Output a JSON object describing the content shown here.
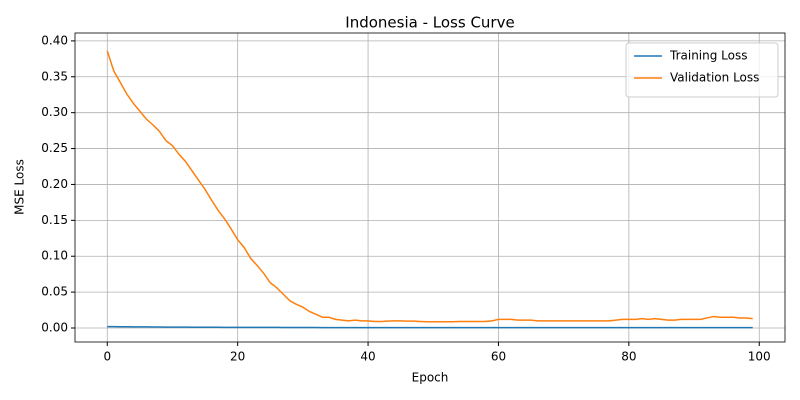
{
  "chart_data": {
    "type": "line",
    "title": "Indonesia - Loss Curve",
    "x_label": "Epoch",
    "y_label": "MSE Loss",
    "x": [
      0,
      1,
      2,
      3,
      4,
      5,
      6,
      7,
      8,
      9,
      10,
      11,
      12,
      13,
      14,
      15,
      16,
      17,
      18,
      19,
      20,
      21,
      22,
      23,
      24,
      25,
      26,
      27,
      28,
      29,
      30,
      31,
      32,
      33,
      34,
      35,
      36,
      37,
      38,
      39,
      40,
      41,
      42,
      43,
      44,
      45,
      46,
      47,
      48,
      49,
      50,
      51,
      52,
      53,
      54,
      55,
      56,
      57,
      58,
      59,
      60,
      61,
      62,
      63,
      64,
      65,
      66,
      67,
      68,
      69,
      70,
      71,
      72,
      73,
      74,
      75,
      76,
      77,
      78,
      79,
      80,
      81,
      82,
      83,
      84,
      85,
      86,
      87,
      88,
      89,
      90,
      91,
      92,
      93,
      94,
      95,
      96,
      97,
      98,
      99
    ],
    "series": [
      {
        "name": "Training Loss",
        "color": "#1f77b4",
        "values": [
          0.002,
          0.0019,
          0.0018,
          0.0017,
          0.0016,
          0.0015,
          0.0015,
          0.0014,
          0.0014,
          0.0013,
          0.0013,
          0.0012,
          0.0012,
          0.0011,
          0.0011,
          0.001,
          0.001,
          0.001,
          0.0009,
          0.0009,
          0.0009,
          0.0009,
          0.0008,
          0.0008,
          0.0008,
          0.0008,
          0.0008,
          0.0007,
          0.0007,
          0.0007,
          0.0007,
          0.0007,
          0.0007,
          0.0006,
          0.0006,
          0.0006,
          0.0006,
          0.0006,
          0.0006,
          0.0006,
          0.0006,
          0.0006,
          0.0006,
          0.0006,
          0.0005,
          0.0005,
          0.0005,
          0.0005,
          0.0005,
          0.0005,
          0.0005,
          0.0005,
          0.0005,
          0.0005,
          0.0005,
          0.0005,
          0.0005,
          0.0005,
          0.0005,
          0.0005,
          0.0005,
          0.0005,
          0.0005,
          0.0005,
          0.0005,
          0.0005,
          0.0005,
          0.0005,
          0.0005,
          0.0005,
          0.0005,
          0.0005,
          0.0005,
          0.0005,
          0.0005,
          0.0005,
          0.0005,
          0.0005,
          0.0005,
          0.0005,
          0.0005,
          0.0005,
          0.0005,
          0.0005,
          0.0005,
          0.0005,
          0.0005,
          0.0005,
          0.0005,
          0.0005,
          0.0005,
          0.0005,
          0.0005,
          0.0005,
          0.0005,
          0.0005,
          0.0005,
          0.0005,
          0.0005,
          0.0005
        ]
      },
      {
        "name": "Validation Loss",
        "color": "#ff7f0e",
        "values": [
          0.386,
          0.358,
          0.342,
          0.326,
          0.313,
          0.302,
          0.291,
          0.283,
          0.274,
          0.261,
          0.254,
          0.242,
          0.232,
          0.219,
          0.206,
          0.193,
          0.178,
          0.164,
          0.152,
          0.138,
          0.123,
          0.112,
          0.097,
          0.087,
          0.076,
          0.063,
          0.056,
          0.047,
          0.038,
          0.033,
          0.029,
          0.023,
          0.019,
          0.015,
          0.015,
          0.012,
          0.011,
          0.01,
          0.011,
          0.01,
          0.01,
          0.009,
          0.009,
          0.0095,
          0.01,
          0.01,
          0.0095,
          0.0095,
          0.009,
          0.0088,
          0.0088,
          0.0088,
          0.0088,
          0.0088,
          0.009,
          0.009,
          0.009,
          0.009,
          0.009,
          0.01,
          0.012,
          0.012,
          0.012,
          0.011,
          0.011,
          0.011,
          0.01,
          0.01,
          0.01,
          0.01,
          0.01,
          0.01,
          0.01,
          0.01,
          0.01,
          0.01,
          0.01,
          0.01,
          0.011,
          0.012,
          0.012,
          0.012,
          0.013,
          0.012,
          0.013,
          0.012,
          0.011,
          0.011,
          0.012,
          0.012,
          0.012,
          0.012,
          0.014,
          0.016,
          0.015,
          0.015,
          0.015,
          0.014,
          0.014,
          0.013
        ]
      }
    ],
    "xlim": [
      -4.95,
      103.95
    ],
    "ylim": [
      -0.0195,
      0.411
    ],
    "xticks": [
      0,
      20,
      40,
      60,
      80,
      100
    ],
    "yticks": [
      {
        "value": 0,
        "label": "0.00"
      },
      {
        "value": 0.05,
        "label": "0.05"
      },
      {
        "value": 0.1,
        "label": "0.10"
      },
      {
        "value": 0.15,
        "label": "0.15"
      },
      {
        "value": 0.2,
        "label": "0.20"
      },
      {
        "value": 0.25,
        "label": "0.25"
      },
      {
        "value": 0.3,
        "label": "0.30"
      },
      {
        "value": 0.35,
        "label": "0.35"
      },
      {
        "value": 0.4,
        "label": "0.40"
      }
    ],
    "grid": true,
    "legend": "upper right"
  }
}
